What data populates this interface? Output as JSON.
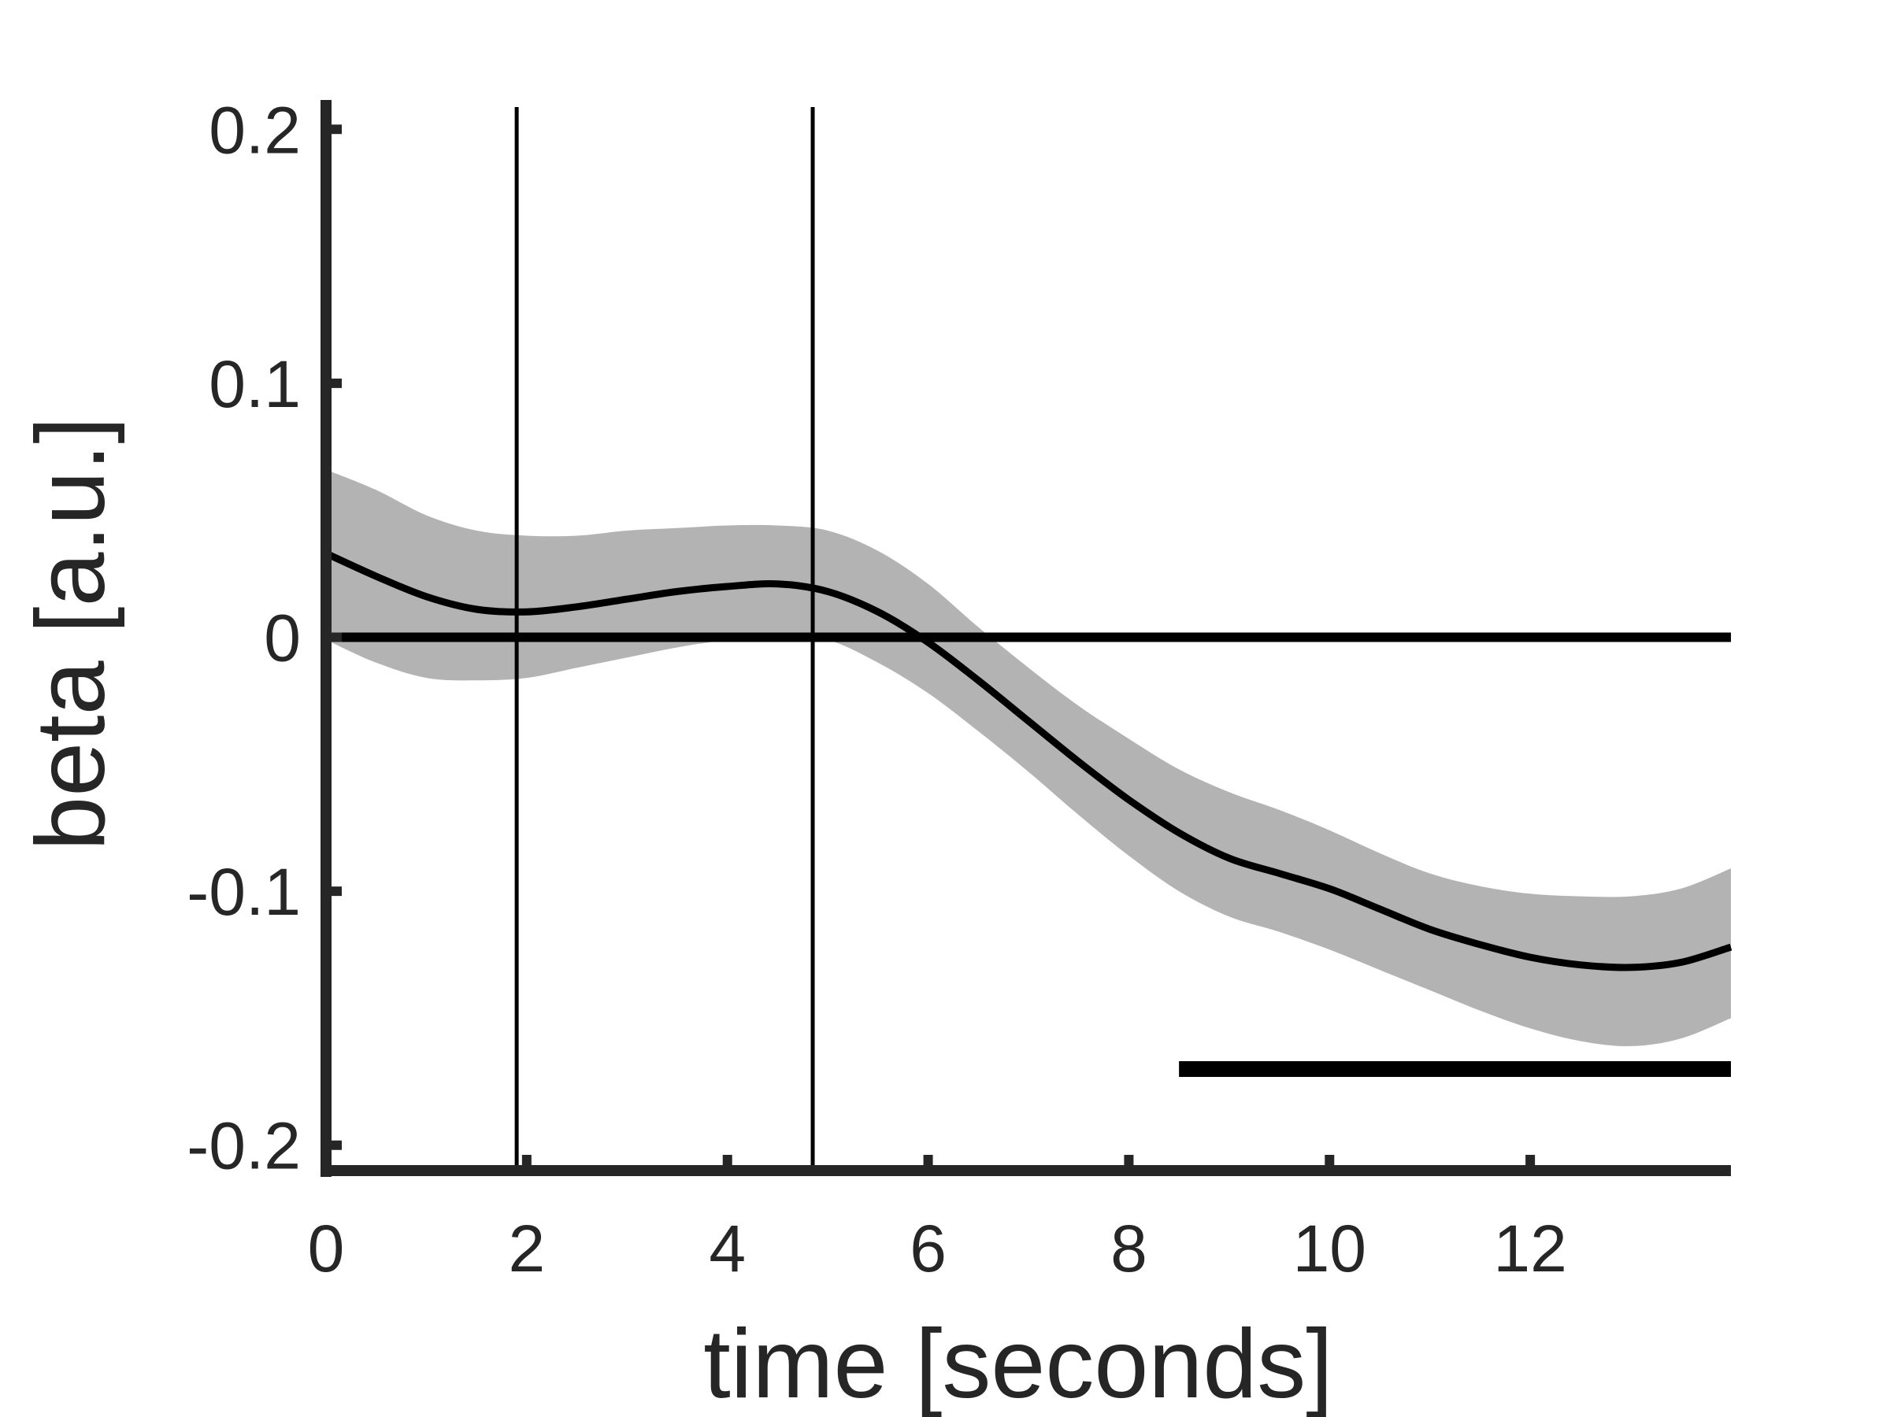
{
  "chart_data": {
    "type": "line",
    "title": "",
    "xlabel": "time [seconds]",
    "ylabel": "beta [a.u.]",
    "xlim": [
      0,
      14
    ],
    "ylim": [
      -0.21,
      0.21
    ],
    "xticks": [
      0,
      2,
      4,
      6,
      8,
      10,
      12
    ],
    "xtick_labels": [
      "0",
      "2",
      "4",
      "6",
      "8",
      "10",
      "12"
    ],
    "yticks": [
      -0.2,
      -0.1,
      0,
      0.1,
      0.2
    ],
    "ytick_labels": [
      "-0.2",
      "-0.1",
      "0",
      "0.1",
      "0.2"
    ],
    "grid": false,
    "series": [
      {
        "x": [
          0,
          0.5,
          1,
          1.5,
          2,
          2.5,
          3,
          3.5,
          4,
          4.5,
          5,
          5.5,
          6,
          6.5,
          7,
          7.5,
          8,
          8.5,
          9,
          9.5,
          10,
          10.5,
          11,
          11.5,
          12,
          12.5,
          13,
          13.5,
          14
        ],
        "y": [
          0.033,
          0.024,
          0.016,
          0.011,
          0.01,
          0.012,
          0.015,
          0.018,
          0.02,
          0.021,
          0.018,
          0.01,
          -0.002,
          -0.017,
          -0.033,
          -0.049,
          -0.064,
          -0.077,
          -0.087,
          -0.093,
          -0.099,
          -0.107,
          -0.115,
          -0.121,
          -0.126,
          -0.129,
          -0.13,
          -0.128,
          -0.122
        ],
        "lower": [
          -0.001,
          -0.01,
          -0.016,
          -0.017,
          -0.016,
          -0.012,
          -0.008,
          -0.004,
          -0.001,
          0.001,
          -0.001,
          -0.01,
          -0.022,
          -0.037,
          -0.053,
          -0.07,
          -0.086,
          -0.1,
          -0.11,
          -0.116,
          -0.123,
          -0.131,
          -0.139,
          -0.147,
          -0.154,
          -0.159,
          -0.161,
          -0.158,
          -0.15
        ],
        "upper": [
          0.066,
          0.058,
          0.048,
          0.042,
          0.04,
          0.04,
          0.042,
          0.043,
          0.044,
          0.044,
          0.042,
          0.034,
          0.021,
          0.004,
          -0.012,
          -0.027,
          -0.04,
          -0.052,
          -0.061,
          -0.068,
          -0.076,
          -0.085,
          -0.093,
          -0.098,
          -0.101,
          -0.102,
          -0.102,
          -0.099,
          -0.091
        ]
      }
    ],
    "baseline_y": 0,
    "vertical_lines_x": [
      1.9,
      4.85
    ],
    "significance_bar": {
      "x": [
        8.5,
        14
      ],
      "y": -0.17
    },
    "colors": {
      "line": "#000000",
      "band": "#b3b3b3",
      "axis": "#262626"
    }
  }
}
